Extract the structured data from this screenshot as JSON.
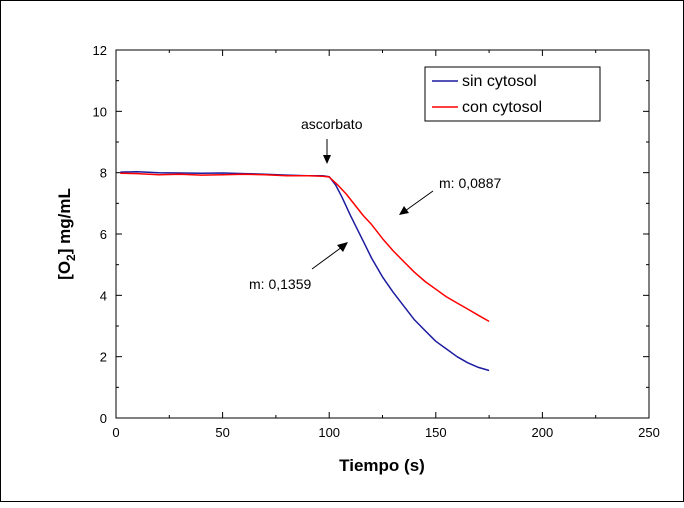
{
  "chart_data": {
    "type": "line",
    "xlabel": "Tiempo (s)",
    "ylabel_main": "[O",
    "ylabel_sub": "2",
    "ylabel_rest": "] mg/mL",
    "xlim": [
      0,
      250
    ],
    "ylim": [
      0,
      12
    ],
    "xticks": [
      0,
      50,
      100,
      150,
      200,
      250
    ],
    "yticks": [
      0,
      2,
      4,
      6,
      8,
      10,
      12
    ],
    "grid": false,
    "legend_position": "top-right",
    "series": [
      {
        "name": "sin cytosol",
        "color": "#1c1ca0",
        "points": [
          [
            2,
            8.02
          ],
          [
            10,
            8.03
          ],
          [
            20,
            8.0
          ],
          [
            30,
            7.99
          ],
          [
            40,
            7.98
          ],
          [
            50,
            7.99
          ],
          [
            60,
            7.97
          ],
          [
            70,
            7.95
          ],
          [
            80,
            7.92
          ],
          [
            90,
            7.9
          ],
          [
            97,
            7.9
          ],
          [
            100,
            7.87
          ],
          [
            103,
            7.6
          ],
          [
            106,
            7.2
          ],
          [
            110,
            6.6
          ],
          [
            115,
            5.9
          ],
          [
            120,
            5.2
          ],
          [
            125,
            4.6
          ],
          [
            130,
            4.1
          ],
          [
            135,
            3.65
          ],
          [
            140,
            3.2
          ],
          [
            145,
            2.85
          ],
          [
            150,
            2.5
          ],
          [
            155,
            2.25
          ],
          [
            160,
            2.0
          ],
          [
            165,
            1.8
          ],
          [
            170,
            1.65
          ],
          [
            175,
            1.55
          ]
        ]
      },
      {
        "name": "con cytosol",
        "color": "#ff0000",
        "points": [
          [
            2,
            7.98
          ],
          [
            10,
            7.97
          ],
          [
            20,
            7.93
          ],
          [
            30,
            7.95
          ],
          [
            40,
            7.92
          ],
          [
            50,
            7.93
          ],
          [
            60,
            7.95
          ],
          [
            70,
            7.93
          ],
          [
            80,
            7.9
          ],
          [
            90,
            7.9
          ],
          [
            97,
            7.88
          ],
          [
            100,
            7.86
          ],
          [
            104,
            7.6
          ],
          [
            108,
            7.3
          ],
          [
            112,
            6.95
          ],
          [
            116,
            6.6
          ],
          [
            120,
            6.3
          ],
          [
            125,
            5.85
          ],
          [
            130,
            5.45
          ],
          [
            135,
            5.1
          ],
          [
            140,
            4.75
          ],
          [
            145,
            4.45
          ],
          [
            150,
            4.2
          ],
          [
            155,
            3.95
          ],
          [
            160,
            3.75
          ],
          [
            165,
            3.55
          ],
          [
            170,
            3.35
          ],
          [
            175,
            3.15
          ]
        ]
      }
    ],
    "annotations": [
      {
        "text": "ascorbato"
      },
      {
        "text": "m: 0,0887"
      },
      {
        "text": "m: 0,1359"
      }
    ]
  }
}
